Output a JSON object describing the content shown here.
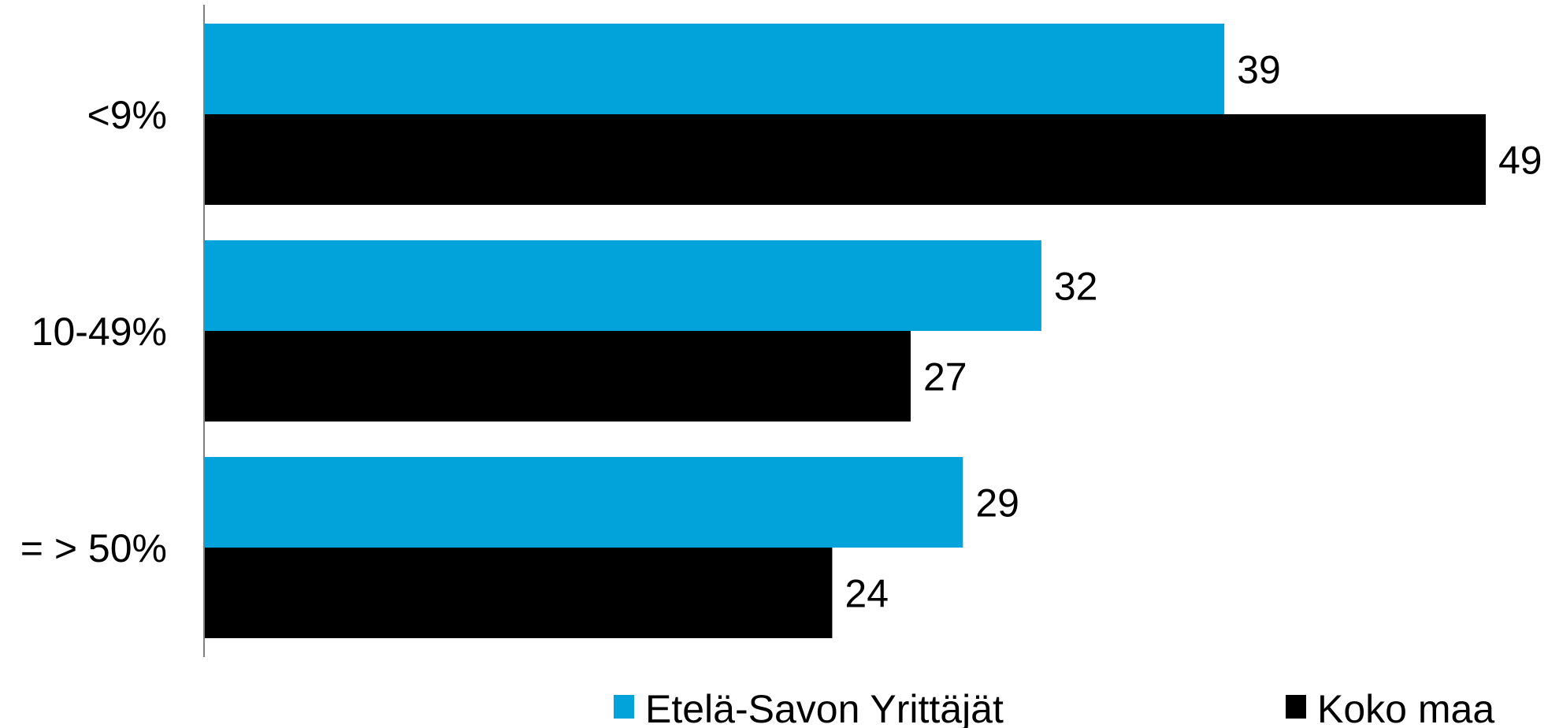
{
  "chart_data": {
    "type": "bar",
    "orientation": "horizontal",
    "categories": [
      "<9%",
      "10-49%",
      "= > 50%"
    ],
    "series": [
      {
        "name": "Etelä-Savon Yrittäjät",
        "color": "#02A3DB",
        "values": [
          39,
          32,
          29
        ]
      },
      {
        "name": "Koko maa",
        "color": "#000000",
        "values": [
          49,
          27,
          24
        ]
      }
    ],
    "data_labels": true,
    "grid": false,
    "legend_position": "bottom",
    "xlim": [
      0,
      49
    ]
  }
}
